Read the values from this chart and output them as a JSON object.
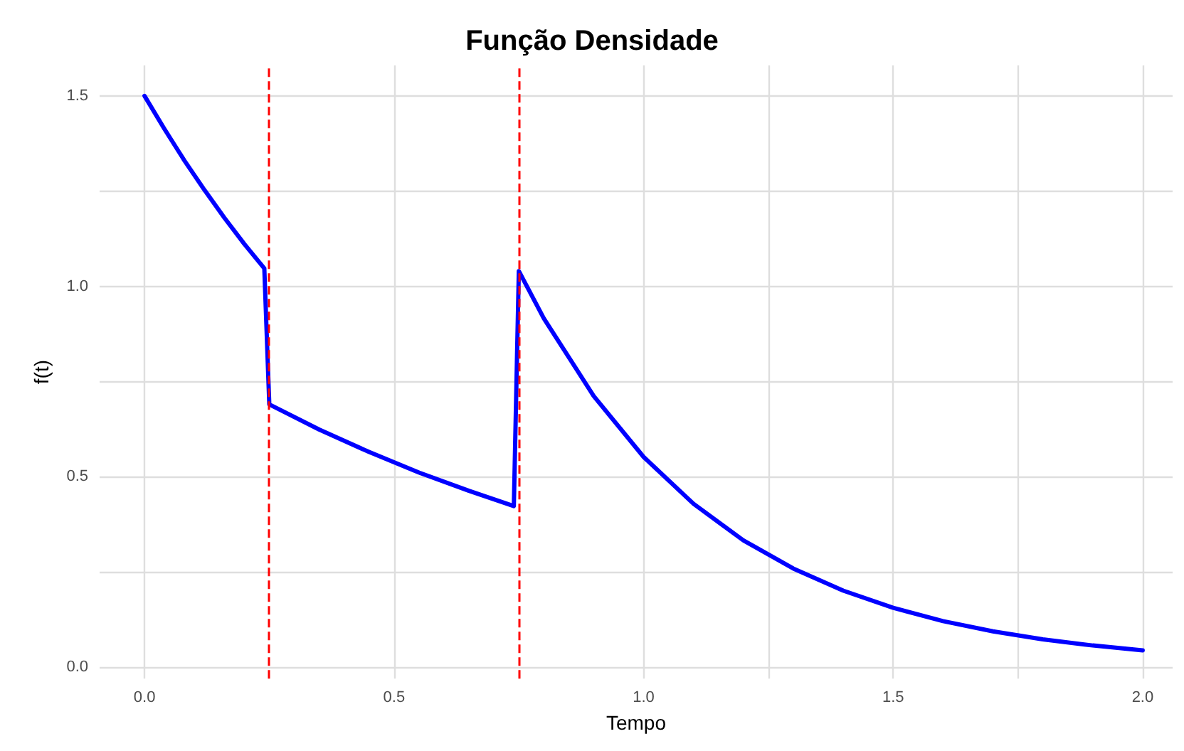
{
  "chart_data": {
    "type": "line",
    "title": "Função Densidade",
    "xlabel": "Tempo",
    "ylabel": "f(t)",
    "series": [
      {
        "color": "#0000ff",
        "x": [
          0,
          0.04,
          0.08,
          0.12,
          0.16,
          0.2,
          0.24,
          0.25,
          0.35,
          0.45,
          0.55,
          0.65,
          0.74,
          0.75,
          0.8,
          0.9,
          1.0,
          1.1,
          1.2,
          1.3,
          1.4,
          1.5,
          1.6,
          1.7,
          1.8,
          1.9,
          2.0
        ],
        "values": [
          1.5,
          1.413,
          1.33,
          1.253,
          1.18,
          1.111,
          1.047,
          0.69,
          0.624,
          0.565,
          0.511,
          0.463,
          0.423,
          1.04,
          0.916,
          0.712,
          0.552,
          0.429,
          0.333,
          0.259,
          0.201,
          0.156,
          0.121,
          0.094,
          0.073,
          0.057,
          0.044
        ]
      }
    ],
    "xlim": [
      -0.09,
      2.06
    ],
    "ylim": [
      -0.03,
      1.58
    ],
    "xticks": [
      {
        "value": 0,
        "label": "0.0"
      },
      {
        "value": 0.5,
        "label": "0.5"
      },
      {
        "value": 1,
        "label": "1.0"
      },
      {
        "value": 1.25,
        "label": null
      },
      {
        "value": 1.5,
        "label": "1.5"
      },
      {
        "value": 1.75,
        "label": null
      },
      {
        "value": 2,
        "label": "2.0"
      }
    ],
    "yticks": [
      {
        "value": 0,
        "label": "0.0"
      },
      {
        "value": 0.25,
        "label": null
      },
      {
        "value": 0.5,
        "label": "0.5"
      },
      {
        "value": 0.75,
        "label": null
      },
      {
        "value": 1,
        "label": "1.0"
      },
      {
        "value": 1.25,
        "label": null
      },
      {
        "value": 1.5,
        "label": "1.5"
      }
    ],
    "ref_lines": [
      {
        "axis": "x",
        "value": 0.25,
        "color": "#ff0000",
        "line_style": "dashed"
      },
      {
        "axis": "x",
        "value": 0.75,
        "color": "#ff0000",
        "line_style": "dashed"
      }
    ],
    "grid": true,
    "marker": "none",
    "line_style": "solid"
  }
}
